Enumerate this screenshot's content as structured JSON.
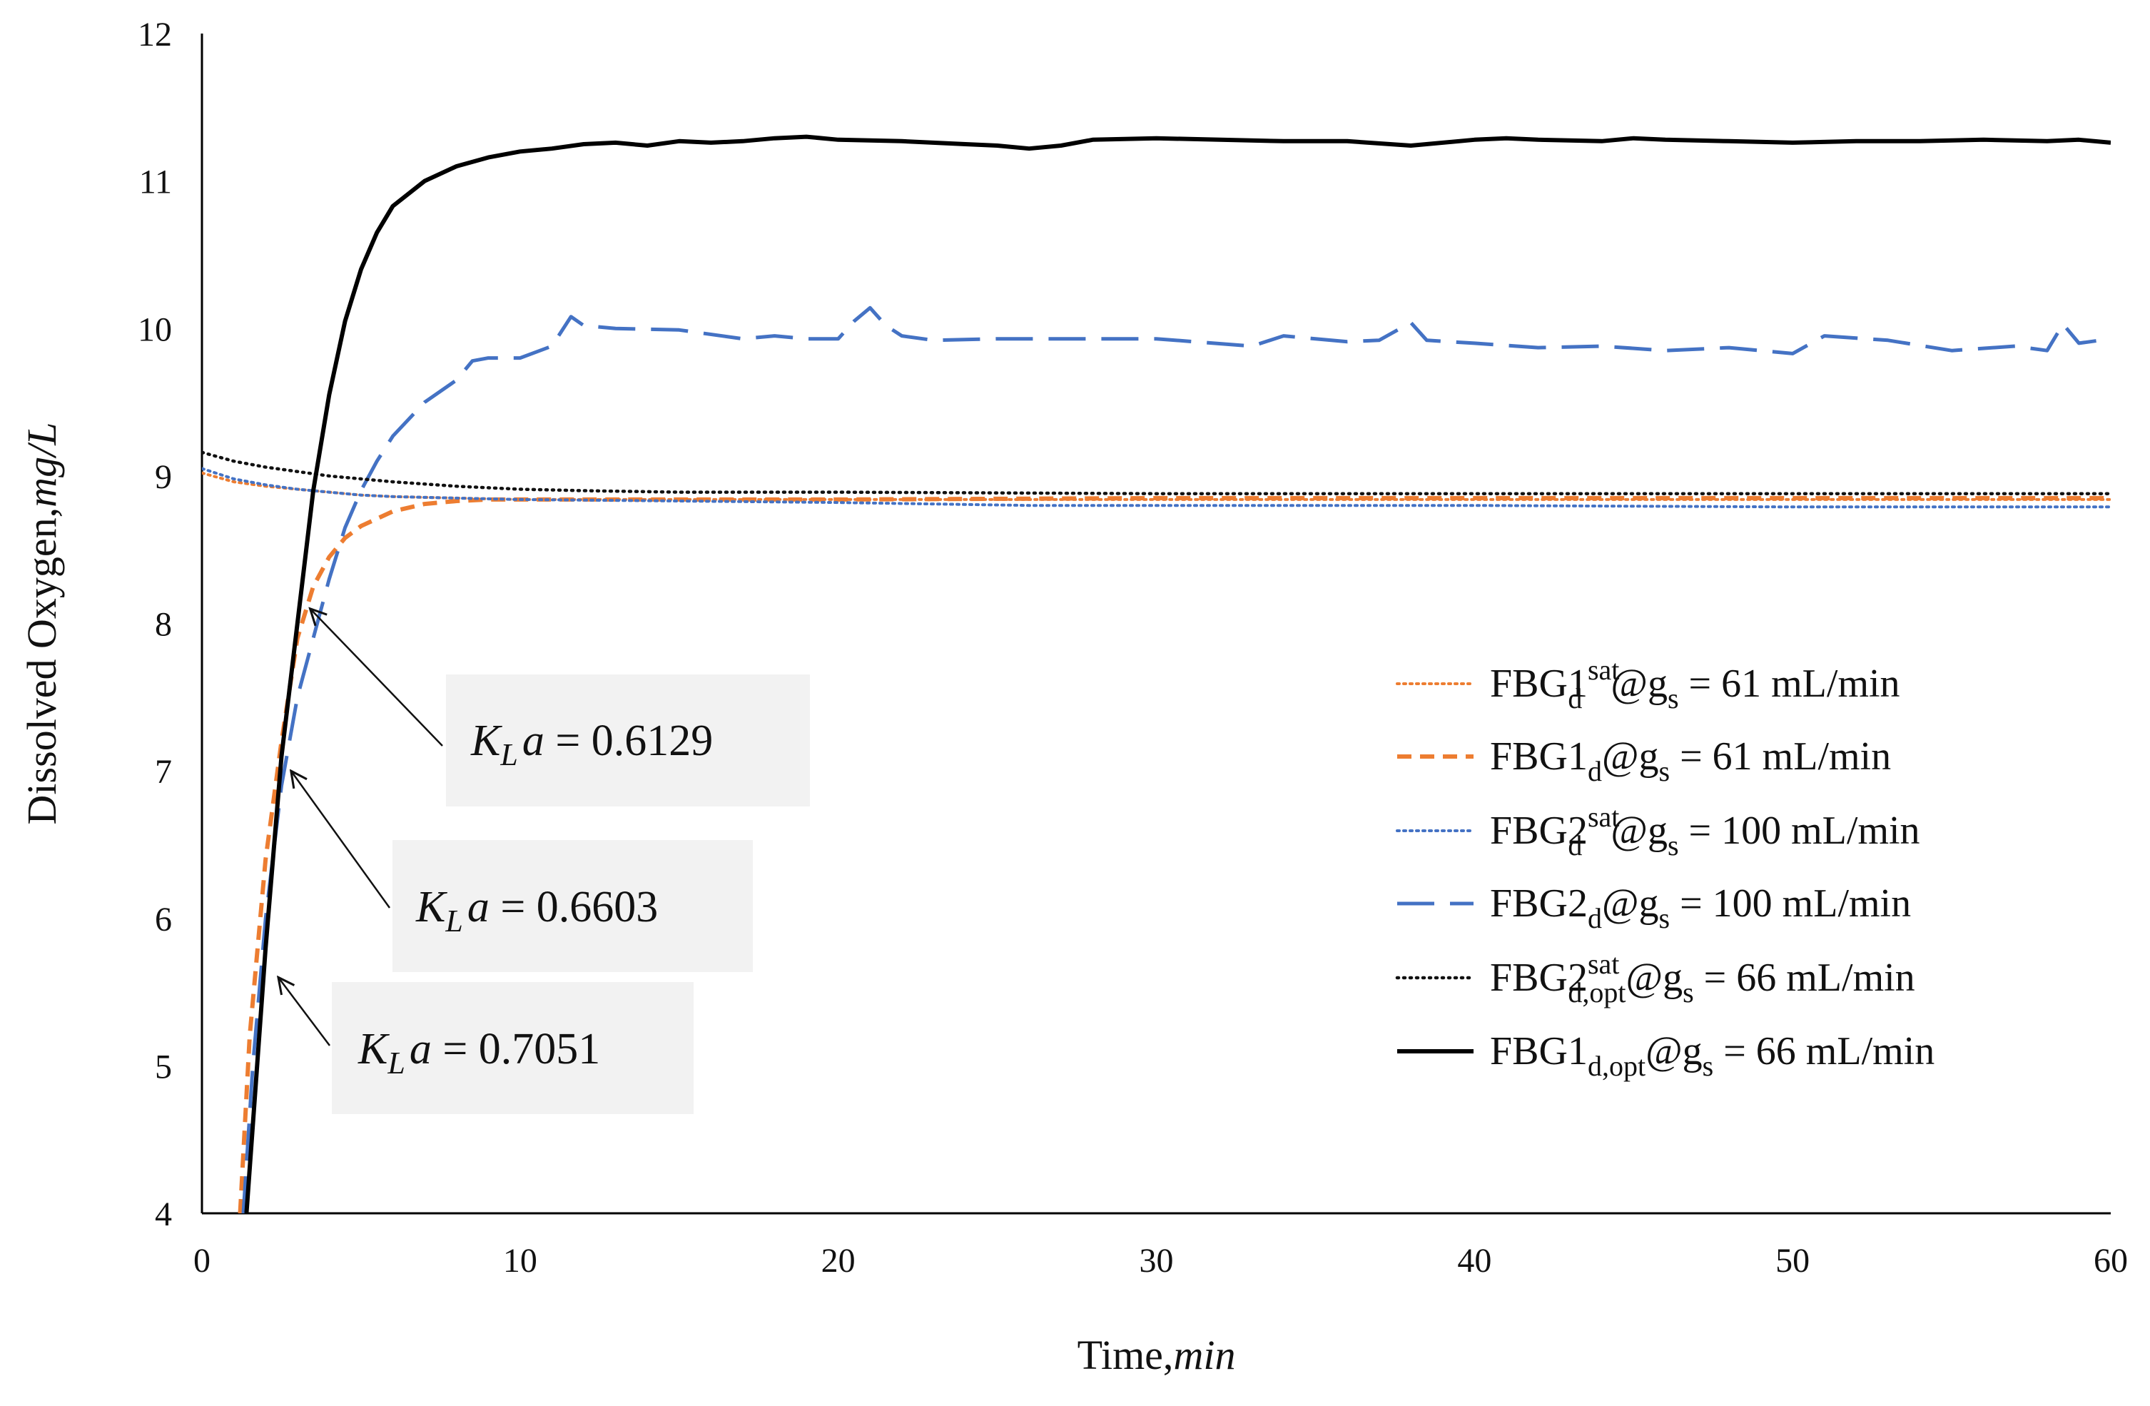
{
  "chart_data": {
    "type": "line",
    "title": "",
    "xlabel": {
      "text": "Time,",
      "italic": "min"
    },
    "ylabel": {
      "text": "Dissolved Oxygen,",
      "italic": "mg/L"
    },
    "xlim": [
      0,
      60
    ],
    "ylim": [
      4,
      12
    ],
    "xticks": [
      0,
      10,
      20,
      30,
      40,
      50,
      60
    ],
    "yticks": [
      4,
      5,
      6,
      7,
      8,
      9,
      10,
      11,
      12
    ],
    "grid": false,
    "legend_position": "right",
    "series": [
      {
        "id": "fbg1-sat",
        "legend": {
          "base": "FBG1",
          "sub": "d",
          "sup": "sat",
          "rest": "@g",
          "rest_sub": "s",
          "tail": " = 61 mL/min"
        },
        "color": "#ED7D31",
        "style": "dotted",
        "x": [
          0,
          1,
          2,
          3,
          4,
          5,
          6,
          8,
          10,
          15,
          20,
          30,
          40,
          50,
          60
        ],
        "y": [
          9.02,
          8.96,
          8.93,
          8.91,
          8.89,
          8.87,
          8.86,
          8.85,
          8.84,
          8.84,
          8.84,
          8.84,
          8.84,
          8.84,
          8.84
        ]
      },
      {
        "id": "fbg1",
        "legend": {
          "base": "FBG1",
          "sub": "d",
          "sup": "",
          "rest": "@g",
          "rest_sub": "s",
          "tail": " = 61 mL/min"
        },
        "color": "#ED7D31",
        "style": "dashed",
        "x": [
          1.2,
          1.5,
          2,
          2.5,
          3,
          3.5,
          4,
          4.5,
          5,
          6,
          7,
          8,
          9,
          10,
          12,
          15,
          20,
          30,
          40,
          50,
          60
        ],
        "y": [
          4.0,
          5.2,
          6.4,
          7.2,
          7.9,
          8.25,
          8.45,
          8.58,
          8.66,
          8.76,
          8.81,
          8.83,
          8.84,
          8.84,
          8.84,
          8.84,
          8.84,
          8.85,
          8.85,
          8.85,
          8.85
        ]
      },
      {
        "id": "fbg2-sat",
        "legend": {
          "base": "FBG2",
          "sub": "d",
          "sup": "sat",
          "rest": "@g",
          "rest_sub": "s",
          "tail": " = 100 mL/min"
        },
        "color": "#4472C4",
        "style": "dotted",
        "x": [
          0,
          1,
          2,
          3,
          4,
          5,
          6,
          8,
          10,
          15,
          20,
          26,
          30,
          40,
          50,
          60
        ],
        "y": [
          9.05,
          8.98,
          8.94,
          8.91,
          8.89,
          8.87,
          8.86,
          8.85,
          8.84,
          8.83,
          8.82,
          8.8,
          8.8,
          8.8,
          8.79,
          8.79
        ]
      },
      {
        "id": "fbg2",
        "legend": {
          "base": "FBG2",
          "sub": "d",
          "sup": "",
          "rest": "@g",
          "rest_sub": "s",
          "tail": " = 100 mL/min"
        },
        "color": "#4472C4",
        "style": "longdash",
        "x": [
          1.3,
          1.6,
          2,
          2.5,
          3,
          3.5,
          4,
          4.5,
          5,
          5.5,
          6,
          7,
          8,
          8.5,
          9,
          10,
          11,
          11.6,
          12,
          13,
          15,
          17,
          18,
          19,
          20,
          20.5,
          21,
          21.5,
          22,
          23,
          25,
          27,
          30,
          33,
          34,
          36,
          37,
          38,
          38.5,
          40,
          42,
          44,
          46,
          48,
          50,
          51,
          53,
          55,
          57,
          58,
          58.5,
          59,
          60
        ],
        "y": [
          4.0,
          5.0,
          6.0,
          6.9,
          7.5,
          7.9,
          8.3,
          8.65,
          8.9,
          9.1,
          9.27,
          9.5,
          9.65,
          9.78,
          9.8,
          9.8,
          9.88,
          10.08,
          10.02,
          10.0,
          9.99,
          9.93,
          9.95,
          9.93,
          9.93,
          10.05,
          10.14,
          10.02,
          9.95,
          9.92,
          9.93,
          9.93,
          9.93,
          9.88,
          9.95,
          9.91,
          9.92,
          10.04,
          9.92,
          9.9,
          9.87,
          9.88,
          9.85,
          9.87,
          9.83,
          9.95,
          9.92,
          9.85,
          9.88,
          9.85,
          10.03,
          9.9,
          9.93
        ]
      },
      {
        "id": "fbg2-opt-sat",
        "legend": {
          "base": "FBG2",
          "sub": "d,opt",
          "sup": "sat",
          "rest": "@g",
          "rest_sub": "s",
          "tail": " = 66 mL/min"
        },
        "color": "#111111",
        "style": "finedot",
        "x": [
          0,
          1,
          2,
          3,
          4,
          5,
          6,
          8,
          10,
          12,
          15,
          20,
          30,
          40,
          50,
          60
        ],
        "y": [
          9.16,
          9.1,
          9.06,
          9.03,
          9.0,
          8.98,
          8.96,
          8.93,
          8.91,
          8.9,
          8.89,
          8.89,
          8.88,
          8.88,
          8.88,
          8.88
        ]
      },
      {
        "id": "fbg1-opt",
        "legend": {
          "base": "FBG1",
          "sub": "d,opt",
          "sup": "",
          "rest": "@g",
          "rest_sub": "s",
          "tail": " = 66 mL/min"
        },
        "color": "#000000",
        "style": "solid",
        "x": [
          1.4,
          2,
          2.5,
          3,
          3.5,
          4,
          4.5,
          5,
          5.5,
          6,
          7,
          8,
          9,
          10,
          11,
          12,
          13,
          14,
          15,
          16,
          17,
          18,
          19,
          20,
          22,
          24,
          25,
          26,
          27,
          28,
          30,
          32,
          34,
          36,
          38,
          40,
          41,
          42,
          44,
          45,
          46,
          48,
          50,
          52,
          54,
          56,
          58,
          59,
          60
        ],
        "y": [
          4.0,
          5.8,
          7.1,
          8.0,
          8.9,
          9.55,
          10.05,
          10.4,
          10.65,
          10.83,
          11.0,
          11.1,
          11.16,
          11.2,
          11.22,
          11.25,
          11.26,
          11.24,
          11.27,
          11.26,
          11.27,
          11.29,
          11.3,
          11.28,
          11.27,
          11.25,
          11.24,
          11.22,
          11.24,
          11.28,
          11.29,
          11.28,
          11.27,
          11.27,
          11.24,
          11.28,
          11.29,
          11.28,
          11.27,
          11.29,
          11.28,
          11.27,
          11.26,
          11.27,
          11.27,
          11.28,
          11.27,
          11.28,
          11.26
        ]
      }
    ],
    "annotations": [
      {
        "label": "K",
        "label_sub": "L",
        "label_var": "a",
        "eq": " = 0.6129",
        "target": [
          3.4,
          8.1
        ]
      },
      {
        "label": "K",
        "label_sub": "L",
        "label_var": "a",
        "eq": " = 0.6603",
        "target": [
          2.8,
          7.0
        ]
      },
      {
        "label": "K",
        "label_sub": "L",
        "label_var": "a",
        "eq": " = 0.7051",
        "target": [
          2.4,
          5.6
        ]
      }
    ]
  }
}
